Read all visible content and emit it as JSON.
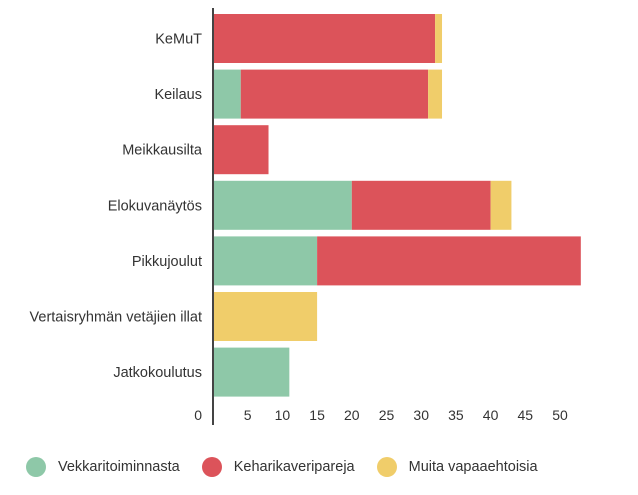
{
  "chart_data": {
    "type": "bar",
    "orientation": "horizontal",
    "stacked": true,
    "categories": [
      "KeMuT",
      "Keilaus",
      "Meikkausilta",
      "Elokuvanäytös",
      "Pikkujoulut",
      "Vertaisryhmän vetäjien illat",
      "Jatkokoulutus"
    ],
    "series": [
      {
        "name": "Vekkaritoiminnasta",
        "color": "#8ec8a8",
        "values": [
          0,
          4,
          0,
          20,
          15,
          0,
          11
        ]
      },
      {
        "name": "Keharikaveripareja",
        "color": "#dc535a",
        "values": [
          32,
          27,
          8,
          20,
          38,
          0,
          0
        ]
      },
      {
        "name": "Muita vapaaehtoisia",
        "color": "#f0cd6a",
        "values": [
          1,
          2,
          0,
          3,
          0,
          15,
          0
        ]
      }
    ],
    "xticks": [
      0,
      5,
      10,
      15,
      20,
      25,
      30,
      35,
      40,
      45,
      50
    ],
    "xlim": [
      0,
      55
    ],
    "grid": false,
    "legend_position": "bottom"
  }
}
